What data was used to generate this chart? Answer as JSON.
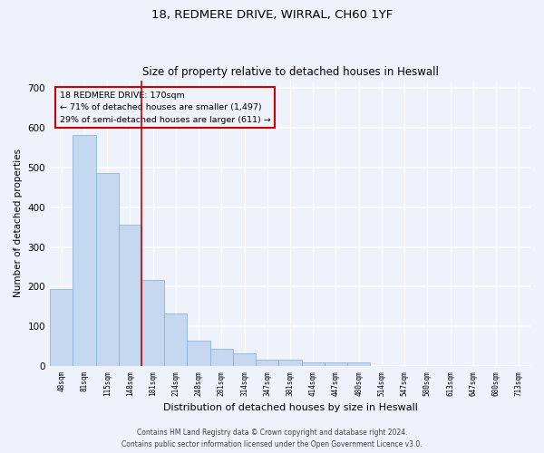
{
  "title1": "18, REDMERE DRIVE, WIRRAL, CH60 1YF",
  "title2": "Size of property relative to detached houses in Heswall",
  "xlabel": "Distribution of detached houses by size in Heswall",
  "ylabel": "Number of detached properties",
  "bar_color": "#c5d8f0",
  "bar_edge_color": "#7aadd4",
  "annotation_line_color": "#cc0000",
  "annotation_box_color": "#cc0000",
  "annotation_text": "18 REDMERE DRIVE: 170sqm\n← 71% of detached houses are smaller (1,497)\n29% of semi-detached houses are larger (611) →",
  "ylim": [
    0,
    720
  ],
  "yticks": [
    0,
    100,
    200,
    300,
    400,
    500,
    600,
    700
  ],
  "categories": [
    "48sqm",
    "81sqm",
    "115sqm",
    "148sqm",
    "181sqm",
    "214sqm",
    "248sqm",
    "281sqm",
    "314sqm",
    "347sqm",
    "381sqm",
    "414sqm",
    "447sqm",
    "480sqm",
    "514sqm",
    "547sqm",
    "580sqm",
    "613sqm",
    "647sqm",
    "680sqm",
    "713sqm"
  ],
  "values": [
    193,
    583,
    487,
    356,
    216,
    133,
    63,
    44,
    31,
    16,
    16,
    9,
    10,
    10,
    0,
    0,
    0,
    0,
    0,
    0,
    0
  ],
  "footer1": "Contains HM Land Registry data © Crown copyright and database right 2024.",
  "footer2": "Contains public sector information licensed under the Open Government Licence v3.0.",
  "bg_color": "#eef2fb",
  "plot_bg_color": "#eef2fb",
  "line_x_index": 3.5
}
